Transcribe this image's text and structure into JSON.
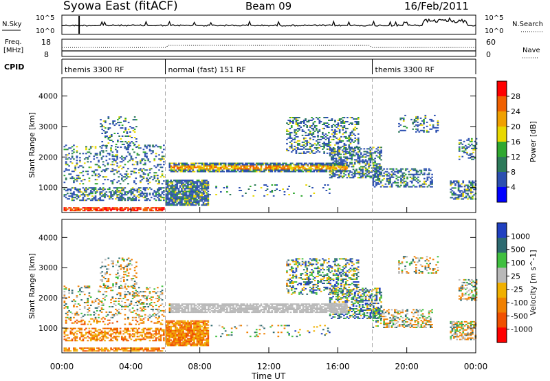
{
  "header": {
    "title": "Syowa East (fitACF)",
    "beam": "Beam 09",
    "date": "16/Feb/2011"
  },
  "top_panels": {
    "nsky_label": "N.Sky",
    "nsky_ticks": [
      "10^5",
      "10^0"
    ],
    "nsearch_label": "N.Search",
    "nsearch_ticks": [
      "10^5",
      "10^0"
    ],
    "freq_label_1": "Freq.",
    "freq_label_2": "[MHz]",
    "freq_ticks": [
      "18",
      "8"
    ],
    "nave_label": "Nave",
    "nave_ticks": [
      "60",
      "0"
    ],
    "cpid_label": "CPID",
    "cpid_segments": [
      {
        "label": "themis 3300 RF",
        "start_hour": 0,
        "end_hour": 6
      },
      {
        "label": "normal (fast) 151 RF",
        "start_hour": 6,
        "end_hour": 18
      },
      {
        "label": "themis 3300 RF",
        "start_hour": 18,
        "end_hour": 24
      }
    ]
  },
  "chart_data": [
    {
      "type": "heatmap",
      "name": "power",
      "xlabel": "Time UT",
      "ylabel": "Slant Range [km]",
      "xlim": [
        0,
        24
      ],
      "ylim": [
        180,
        4600
      ],
      "x_ticks": [
        "00:00",
        "04:00",
        "08:00",
        "12:00",
        "16:00",
        "20:00",
        "00:00"
      ],
      "y_ticks": [
        1000,
        2000,
        3000,
        4000
      ],
      "colorbar_label": "Power [dB]",
      "colorbar_ticks": [
        "28",
        "24",
        "20",
        "16",
        "12",
        "8",
        "4"
      ],
      "colorbar_colors": [
        "#ff0000",
        "#f06000",
        "#f0a000",
        "#e8d800",
        "#30a830",
        "#2d7a5a",
        "#2b4fb0",
        "#0000ff"
      ]
    },
    {
      "type": "heatmap",
      "name": "velocity",
      "xlabel": "Time UT",
      "ylabel": "Slant Range [km]",
      "xlim": [
        0,
        24
      ],
      "ylim": [
        180,
        4600
      ],
      "x_ticks": [
        "00:00",
        "04:00",
        "08:00",
        "12:00",
        "16:00",
        "20:00",
        "00:00"
      ],
      "y_ticks": [
        1000,
        2000,
        3000,
        4000
      ],
      "colorbar_label": "Velocity [m s^-1]",
      "colorbar_ticks": [
        "1000",
        "500",
        "100",
        "25",
        "-25",
        "-100",
        "-500",
        "-1000"
      ],
      "colorbar_colors": [
        "#2040c0",
        "#2d6a70",
        "#40c040",
        "#b8b8b8",
        "#f0b000",
        "#f08000",
        "#f05000",
        "#ff0000"
      ]
    }
  ]
}
